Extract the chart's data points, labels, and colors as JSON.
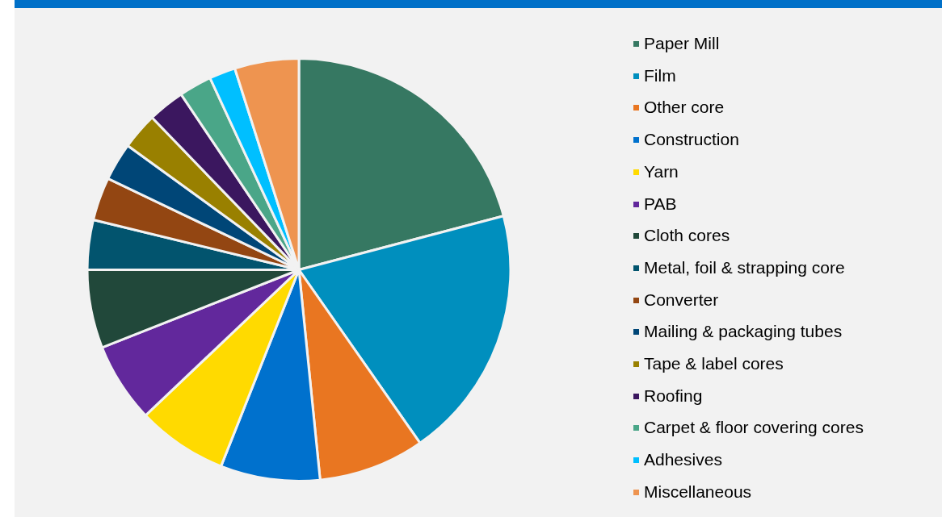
{
  "chart_data": {
    "type": "pie",
    "categories": [
      "Paper Mill",
      "Film",
      "Other core",
      "Construction",
      "Yarn",
      "PAB",
      "Cloth cores",
      "Metal, foil & strapping core",
      "Converter",
      "Mailing & packaging tubes",
      "Tape & label cores",
      "Roofing",
      "Carpet & floor covering cores",
      "Adhesives",
      "Miscellaneous"
    ],
    "values": [
      20.9,
      19.4,
      8.1,
      7.6,
      6.9,
      6.1,
      6.0,
      3.8,
      3.3,
      2.9,
      2.8,
      2.8,
      2.5,
      2.0,
      4.9
    ],
    "colors": [
      "#367862",
      "#008fbe",
      "#e97621",
      "#0071cd",
      "#ffda00",
      "#62289c",
      "#21483a",
      "#02546e",
      "#934612",
      "#004677",
      "#998000",
      "#3b175f",
      "#4aa688",
      "#00bfff",
      "#ee9450"
    ],
    "legend": "right"
  }
}
